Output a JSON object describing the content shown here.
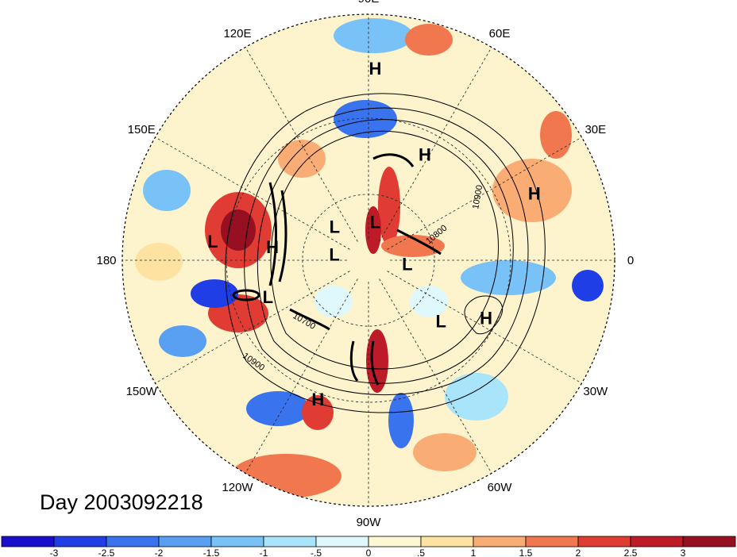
{
  "day_label": "Day 2003092218",
  "longitude_labels": [
    "90E",
    "60E",
    "30E",
    "0",
    "30W",
    "60W",
    "90W",
    "120W",
    "150W",
    "180",
    "150E",
    "120E"
  ],
  "pressure_centers": [
    {
      "type": "H",
      "lon": 88,
      "lat": 14
    },
    {
      "type": "H",
      "lon": 62,
      "lat": 38
    },
    {
      "type": "H",
      "lon": 22,
      "lat": 18
    },
    {
      "type": "H",
      "lon": -26,
      "lat": 34
    },
    {
      "type": "H",
      "lon": -110,
      "lat": 28
    },
    {
      "type": "H",
      "lon": 172,
      "lat": 47
    },
    {
      "type": "L",
      "lon": 173,
      "lat": 25
    },
    {
      "type": "L",
      "lon": 135,
      "lat": 68
    },
    {
      "type": "L",
      "lon": 80,
      "lat": 72
    },
    {
      "type": "L",
      "lon": 170,
      "lat": 74
    },
    {
      "type": "L",
      "lon": -5,
      "lat": 72
    },
    {
      "type": "L",
      "lon": -160,
      "lat": 43
    },
    {
      "type": "L",
      "lon": -40,
      "lat": 48
    }
  ],
  "contour_labels": [
    "10900",
    "10900",
    "10800",
    "10700"
  ],
  "colorbar": {
    "labels": [
      "-3",
      "-2.5",
      "-2",
      "-1.5",
      "-1",
      "-.5",
      "0",
      ".5",
      "1",
      "1.5",
      "2",
      "2.5",
      "3"
    ],
    "colors": [
      "#1a0ecd",
      "#1f3ee6",
      "#3a73ee",
      "#59a0f3",
      "#78c2f7",
      "#a8e4fa",
      "#dff8fb",
      "#fdf8d3",
      "#fde2a2",
      "#f9ac74",
      "#f1774f",
      "#e03c33",
      "#be1b28",
      "#961022"
    ]
  }
}
